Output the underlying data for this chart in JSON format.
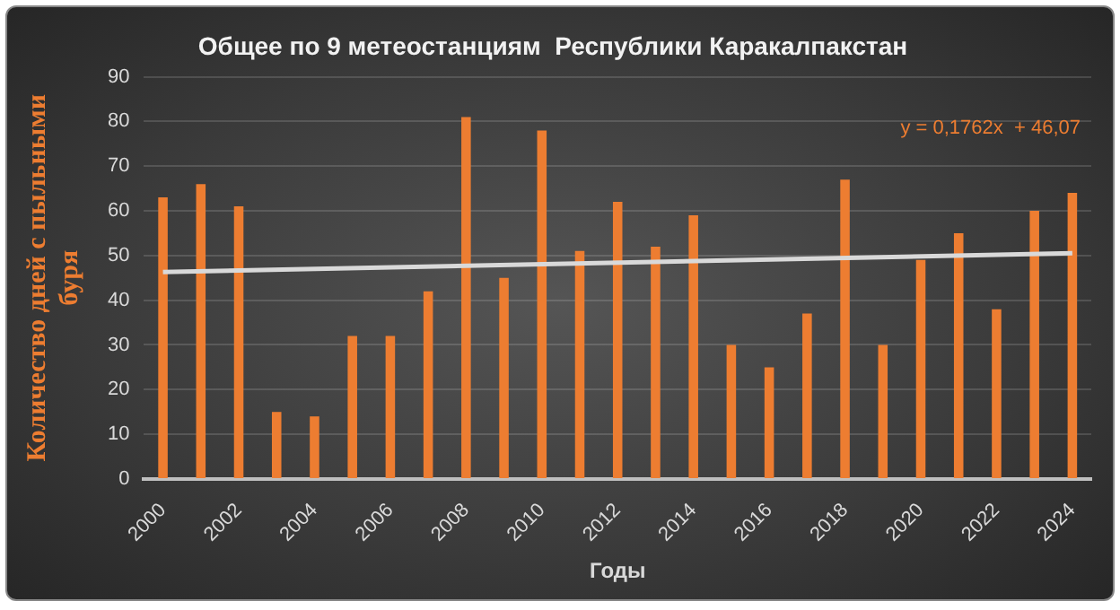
{
  "chart_data": {
    "type": "bar",
    "title": "Общее по 9 метеостанциям  Республики Каракалпакстан",
    "xlabel": "Годы",
    "ylabel": "Количество дней с пыльными буря",
    "categories": [
      "2000",
      null,
      "2002",
      null,
      "2004",
      null,
      "2006",
      null,
      "2008",
      null,
      "2010",
      null,
      "2012",
      null,
      "2014",
      null,
      "2016",
      null,
      "2018",
      null,
      "2020",
      null,
      "2022",
      null,
      "2024"
    ],
    "series": [
      {
        "color": "#ed7d31",
        "values": [
          63,
          66,
          61,
          15,
          14,
          32,
          32,
          42,
          81,
          45,
          78,
          51,
          62,
          52,
          59,
          30,
          25,
          37,
          67,
          30,
          49,
          55,
          38,
          60,
          64
        ]
      },
      {
        "type": "line",
        "color": "#d9d9d9",
        "values": [
          46.3,
          null,
          null,
          null,
          null,
          null,
          null,
          null,
          null,
          null,
          null,
          null,
          null,
          null,
          null,
          null,
          null,
          null,
          null,
          null,
          null,
          null,
          null,
          null,
          50.5
        ]
      }
    ],
    "ylim": [
      0,
      90
    ],
    "yticks": [
      0,
      10,
      20,
      30,
      40,
      50,
      60,
      70,
      80,
      90
    ],
    "grid": "y",
    "legend": false,
    "marker": "none",
    "annotations": [
      "y = 0,1762x  + 46,07"
    ]
  }
}
